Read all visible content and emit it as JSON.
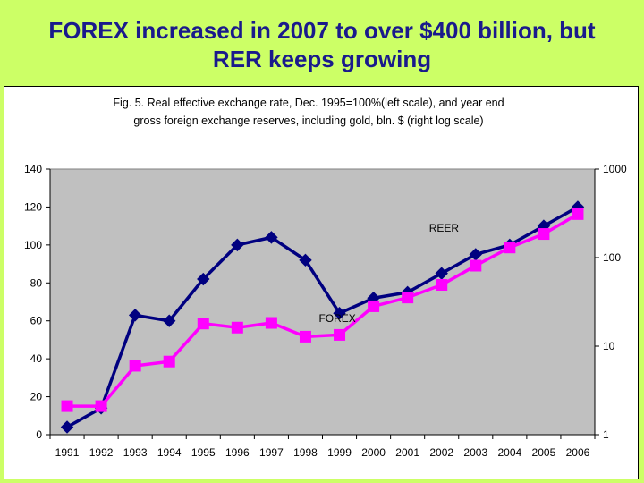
{
  "slide": {
    "title_line1": "FOREX increased in 2007 to over $400 billion, but",
    "title_line2": "RER keeps growing"
  },
  "colors": {
    "background": "#ccff66",
    "title": "#1a1a8c",
    "plot_area": "#c0c0c0",
    "reer": "#000080",
    "forex": "#ff00ff"
  },
  "chart_data": {
    "type": "line",
    "title": [
      "Fig. 5. Real effective exchange rate, Dec. 1995=100%(left scale), and year end",
      "gross foreign exchange reserves, including gold, bln. $ (right log scale)"
    ],
    "x": [
      "1991",
      "1992",
      "1993",
      "1994",
      "1995",
      "1996",
      "1997",
      "1998",
      "1999",
      "2000",
      "2001",
      "2002",
      "2003",
      "2004",
      "2005",
      "2006"
    ],
    "y_left": {
      "ylim": [
        0,
        140
      ],
      "ticks": [
        "0",
        "20",
        "40",
        "60",
        "80",
        "100",
        "120",
        "140"
      ],
      "scale": "linear"
    },
    "y_right": {
      "ylim": [
        1,
        1000
      ],
      "ticks": [
        "1",
        "10",
        "100",
        "1000"
      ],
      "scale": "log"
    },
    "grid": false,
    "series": [
      {
        "name": "REER",
        "axis": "left",
        "marker": "diamond",
        "values": [
          4,
          14,
          63,
          60,
          82,
          100,
          104,
          92,
          64,
          72,
          75,
          85,
          95,
          100,
          110,
          120
        ]
      },
      {
        "name": "FOREX",
        "axis": "right",
        "marker": "square",
        "values": [
          2.1,
          2.1,
          6.0,
          6.7,
          18.0,
          16.2,
          18.3,
          12.8,
          13.4,
          28.2,
          35.4,
          49.2,
          81.1,
          130,
          185,
          310
        ]
      }
    ]
  }
}
